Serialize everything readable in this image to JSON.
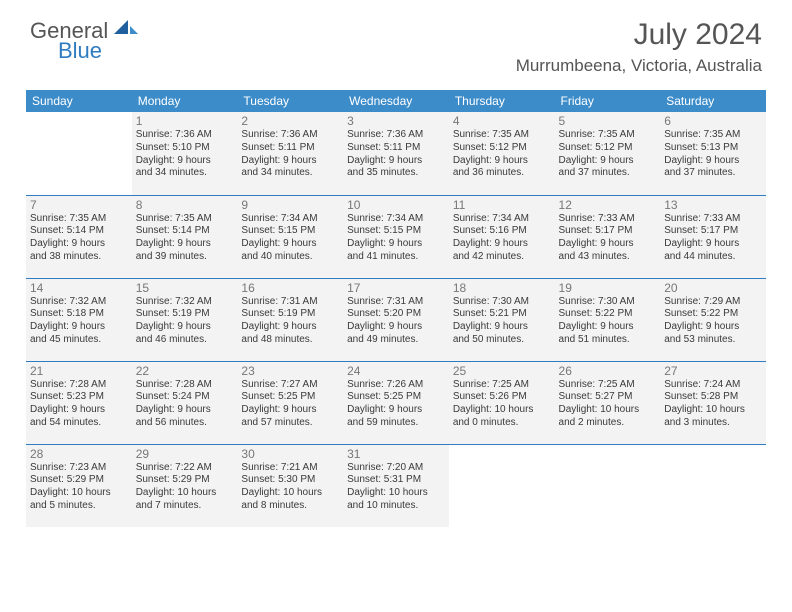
{
  "brand": {
    "word1": "General",
    "word2": "Blue"
  },
  "title": "July 2024",
  "location": "Murrumbeena, Victoria, Australia",
  "day_headers": [
    "Sunday",
    "Monday",
    "Tuesday",
    "Wednesday",
    "Thursday",
    "Friday",
    "Saturday"
  ],
  "colors": {
    "header_bg": "#3c8cca",
    "header_text": "#ffffff",
    "cell_bg": "#f3f3f3",
    "row_divider": "#2f7cc0",
    "daynum": "#777777",
    "body_text": "#3a3a3a",
    "title_text": "#555555",
    "brand_blue": "#2f7cc0"
  },
  "typography": {
    "title_fontsize": 30,
    "location_fontsize": 17,
    "header_fontsize": 12,
    "daynum_fontsize": 12,
    "info_fontsize": 10
  },
  "grid": [
    [
      null,
      {
        "num": "1",
        "lines": [
          "Sunrise: 7:36 AM",
          "Sunset: 5:10 PM",
          "Daylight: 9 hours",
          "and 34 minutes."
        ]
      },
      {
        "num": "2",
        "lines": [
          "Sunrise: 7:36 AM",
          "Sunset: 5:11 PM",
          "Daylight: 9 hours",
          "and 34 minutes."
        ]
      },
      {
        "num": "3",
        "lines": [
          "Sunrise: 7:36 AM",
          "Sunset: 5:11 PM",
          "Daylight: 9 hours",
          "and 35 minutes."
        ]
      },
      {
        "num": "4",
        "lines": [
          "Sunrise: 7:35 AM",
          "Sunset: 5:12 PM",
          "Daylight: 9 hours",
          "and 36 minutes."
        ]
      },
      {
        "num": "5",
        "lines": [
          "Sunrise: 7:35 AM",
          "Sunset: 5:12 PM",
          "Daylight: 9 hours",
          "and 37 minutes."
        ]
      },
      {
        "num": "6",
        "lines": [
          "Sunrise: 7:35 AM",
          "Sunset: 5:13 PM",
          "Daylight: 9 hours",
          "and 37 minutes."
        ]
      }
    ],
    [
      {
        "num": "7",
        "lines": [
          "Sunrise: 7:35 AM",
          "Sunset: 5:14 PM",
          "Daylight: 9 hours",
          "and 38 minutes."
        ]
      },
      {
        "num": "8",
        "lines": [
          "Sunrise: 7:35 AM",
          "Sunset: 5:14 PM",
          "Daylight: 9 hours",
          "and 39 minutes."
        ]
      },
      {
        "num": "9",
        "lines": [
          "Sunrise: 7:34 AM",
          "Sunset: 5:15 PM",
          "Daylight: 9 hours",
          "and 40 minutes."
        ]
      },
      {
        "num": "10",
        "lines": [
          "Sunrise: 7:34 AM",
          "Sunset: 5:15 PM",
          "Daylight: 9 hours",
          "and 41 minutes."
        ]
      },
      {
        "num": "11",
        "lines": [
          "Sunrise: 7:34 AM",
          "Sunset: 5:16 PM",
          "Daylight: 9 hours",
          "and 42 minutes."
        ]
      },
      {
        "num": "12",
        "lines": [
          "Sunrise: 7:33 AM",
          "Sunset: 5:17 PM",
          "Daylight: 9 hours",
          "and 43 minutes."
        ]
      },
      {
        "num": "13",
        "lines": [
          "Sunrise: 7:33 AM",
          "Sunset: 5:17 PM",
          "Daylight: 9 hours",
          "and 44 minutes."
        ]
      }
    ],
    [
      {
        "num": "14",
        "lines": [
          "Sunrise: 7:32 AM",
          "Sunset: 5:18 PM",
          "Daylight: 9 hours",
          "and 45 minutes."
        ]
      },
      {
        "num": "15",
        "lines": [
          "Sunrise: 7:32 AM",
          "Sunset: 5:19 PM",
          "Daylight: 9 hours",
          "and 46 minutes."
        ]
      },
      {
        "num": "16",
        "lines": [
          "Sunrise: 7:31 AM",
          "Sunset: 5:19 PM",
          "Daylight: 9 hours",
          "and 48 minutes."
        ]
      },
      {
        "num": "17",
        "lines": [
          "Sunrise: 7:31 AM",
          "Sunset: 5:20 PM",
          "Daylight: 9 hours",
          "and 49 minutes."
        ]
      },
      {
        "num": "18",
        "lines": [
          "Sunrise: 7:30 AM",
          "Sunset: 5:21 PM",
          "Daylight: 9 hours",
          "and 50 minutes."
        ]
      },
      {
        "num": "19",
        "lines": [
          "Sunrise: 7:30 AM",
          "Sunset: 5:22 PM",
          "Daylight: 9 hours",
          "and 51 minutes."
        ]
      },
      {
        "num": "20",
        "lines": [
          "Sunrise: 7:29 AM",
          "Sunset: 5:22 PM",
          "Daylight: 9 hours",
          "and 53 minutes."
        ]
      }
    ],
    [
      {
        "num": "21",
        "lines": [
          "Sunrise: 7:28 AM",
          "Sunset: 5:23 PM",
          "Daylight: 9 hours",
          "and 54 minutes."
        ]
      },
      {
        "num": "22",
        "lines": [
          "Sunrise: 7:28 AM",
          "Sunset: 5:24 PM",
          "Daylight: 9 hours",
          "and 56 minutes."
        ]
      },
      {
        "num": "23",
        "lines": [
          "Sunrise: 7:27 AM",
          "Sunset: 5:25 PM",
          "Daylight: 9 hours",
          "and 57 minutes."
        ]
      },
      {
        "num": "24",
        "lines": [
          "Sunrise: 7:26 AM",
          "Sunset: 5:25 PM",
          "Daylight: 9 hours",
          "and 59 minutes."
        ]
      },
      {
        "num": "25",
        "lines": [
          "Sunrise: 7:25 AM",
          "Sunset: 5:26 PM",
          "Daylight: 10 hours",
          "and 0 minutes."
        ]
      },
      {
        "num": "26",
        "lines": [
          "Sunrise: 7:25 AM",
          "Sunset: 5:27 PM",
          "Daylight: 10 hours",
          "and 2 minutes."
        ]
      },
      {
        "num": "27",
        "lines": [
          "Sunrise: 7:24 AM",
          "Sunset: 5:28 PM",
          "Daylight: 10 hours",
          "and 3 minutes."
        ]
      }
    ],
    [
      {
        "num": "28",
        "lines": [
          "Sunrise: 7:23 AM",
          "Sunset: 5:29 PM",
          "Daylight: 10 hours",
          "and 5 minutes."
        ]
      },
      {
        "num": "29",
        "lines": [
          "Sunrise: 7:22 AM",
          "Sunset: 5:29 PM",
          "Daylight: 10 hours",
          "and 7 minutes."
        ]
      },
      {
        "num": "30",
        "lines": [
          "Sunrise: 7:21 AM",
          "Sunset: 5:30 PM",
          "Daylight: 10 hours",
          "and 8 minutes."
        ]
      },
      {
        "num": "31",
        "lines": [
          "Sunrise: 7:20 AM",
          "Sunset: 5:31 PM",
          "Daylight: 10 hours",
          "and 10 minutes."
        ]
      },
      null,
      null,
      null
    ]
  ]
}
